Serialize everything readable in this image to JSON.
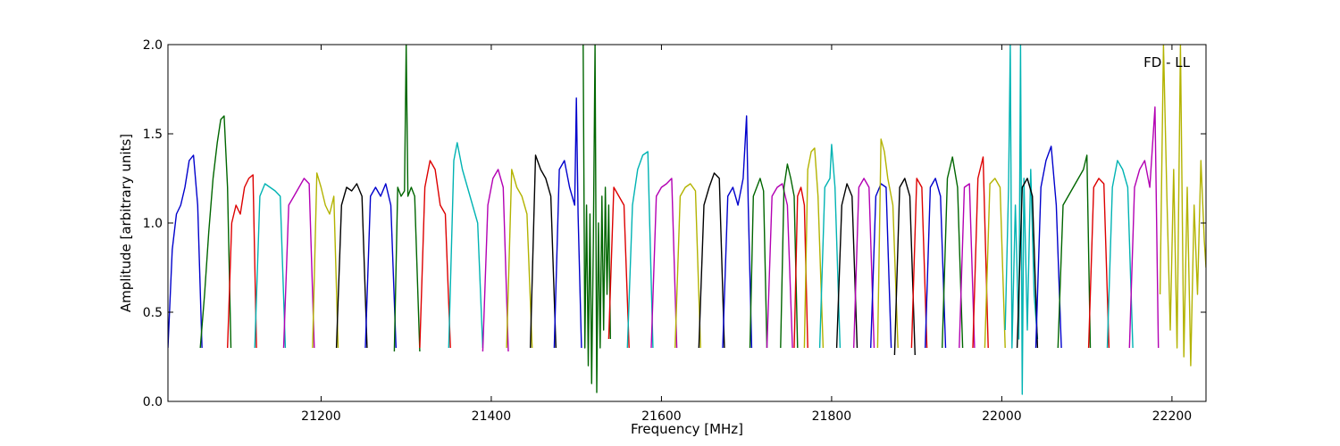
{
  "chart_data": {
    "type": "line",
    "title": "",
    "annotation": "FD - LL",
    "xlabel": "Frequency [MHz]",
    "ylabel": "Amplitude [arbitrary units]",
    "xlim": [
      21020,
      22240
    ],
    "ylim": [
      0.0,
      2.0
    ],
    "xticks": [
      21200,
      21400,
      21600,
      21800,
      22000,
      22200
    ],
    "yticks": [
      0.0,
      0.5,
      1.0,
      1.5,
      2.0
    ],
    "ytick_labels": [
      "0.0",
      "0.5",
      "1.0",
      "1.5",
      "2.0"
    ],
    "grid": false,
    "legend": "none",
    "colors": {
      "blue": "#0000cc",
      "green": "#006600",
      "red": "#dd0000",
      "cyan": "#00b3b3",
      "magenta": "#b300b3",
      "olive": "#b3b300",
      "black": "#000000"
    },
    "series": [
      {
        "color": "blue",
        "x": [
          21020,
          21025,
          21030,
          21035,
          21040,
          21045,
          21050,
          21055,
          21060
        ],
        "y": [
          0.3,
          0.85,
          1.05,
          1.1,
          1.2,
          1.35,
          1.38,
          1.1,
          0.3
        ]
      },
      {
        "color": "green",
        "x": [
          21058,
          21063,
          21068,
          21073,
          21078,
          21082,
          21086,
          21090,
          21094
        ],
        "y": [
          0.3,
          0.6,
          0.95,
          1.25,
          1.45,
          1.58,
          1.6,
          1.2,
          0.3
        ]
      },
      {
        "color": "red",
        "x": [
          21090,
          21095,
          21100,
          21105,
          21110,
          21115,
          21120,
          21124
        ],
        "y": [
          0.3,
          1.0,
          1.1,
          1.05,
          1.2,
          1.25,
          1.27,
          0.3
        ]
      },
      {
        "color": "cyan",
        "x": [
          21122,
          21128,
          21134,
          21140,
          21146,
          21152,
          21158
        ],
        "y": [
          0.3,
          1.15,
          1.22,
          1.2,
          1.18,
          1.15,
          0.3
        ]
      },
      {
        "color": "magenta",
        "x": [
          21156,
          21162,
          21168,
          21174,
          21180,
          21186,
          21192
        ],
        "y": [
          0.3,
          1.1,
          1.15,
          1.2,
          1.25,
          1.22,
          0.3
        ]
      },
      {
        "color": "olive",
        "x": [
          21190,
          21195,
          21200,
          21205,
          21210,
          21215,
          21220
        ],
        "y": [
          0.3,
          1.28,
          1.2,
          1.1,
          1.05,
          1.15,
          0.3
        ]
      },
      {
        "color": "black",
        "x": [
          21218,
          21224,
          21230,
          21236,
          21242,
          21248,
          21254
        ],
        "y": [
          0.3,
          1.1,
          1.2,
          1.18,
          1.22,
          1.15,
          0.3
        ]
      },
      {
        "color": "blue",
        "x": [
          21252,
          21258,
          21264,
          21270,
          21276,
          21282,
          21288
        ],
        "y": [
          0.3,
          1.15,
          1.2,
          1.15,
          1.22,
          1.1,
          0.3
        ]
      },
      {
        "color": "green",
        "x": [
          21286,
          21290,
          21294,
          21298,
          21300,
          21302,
          21306,
          21310,
          21316
        ],
        "y": [
          0.28,
          1.2,
          1.15,
          1.18,
          2.0,
          1.15,
          1.2,
          1.15,
          0.28
        ]
      },
      {
        "color": "red",
        "x": [
          21316,
          21322,
          21328,
          21334,
          21340,
          21346,
          21352
        ],
        "y": [
          0.3,
          1.2,
          1.35,
          1.3,
          1.1,
          1.05,
          0.3
        ]
      },
      {
        "color": "cyan",
        "x": [
          21350,
          21356,
          21360,
          21366,
          21372,
          21378,
          21384,
          21390
        ],
        "y": [
          0.3,
          1.35,
          1.45,
          1.3,
          1.2,
          1.1,
          1.0,
          0.3
        ]
      },
      {
        "color": "magenta",
        "x": [
          21390,
          21396,
          21402,
          21408,
          21414,
          21420
        ],
        "y": [
          0.28,
          1.1,
          1.25,
          1.3,
          1.2,
          0.28
        ]
      },
      {
        "color": "olive",
        "x": [
          21418,
          21424,
          21430,
          21436,
          21442,
          21448
        ],
        "y": [
          0.3,
          1.3,
          1.2,
          1.15,
          1.05,
          0.3
        ]
      },
      {
        "color": "black",
        "x": [
          21446,
          21452,
          21458,
          21464,
          21470,
          21476
        ],
        "y": [
          0.3,
          1.38,
          1.3,
          1.25,
          1.15,
          0.3
        ]
      },
      {
        "color": "blue",
        "x": [
          21474,
          21480,
          21486,
          21492,
          21498,
          21500,
          21502,
          21506
        ],
        "y": [
          0.3,
          1.3,
          1.35,
          1.2,
          1.1,
          1.7,
          1.05,
          0.3
        ]
      },
      {
        "color": "green",
        "x": [
          21508,
          21510,
          21512,
          21514,
          21516,
          21518,
          21520,
          21522,
          21524,
          21526,
          21528,
          21530,
          21532,
          21534,
          21536,
          21538,
          21540
        ],
        "y": [
          2.0,
          0.3,
          1.1,
          0.2,
          1.05,
          0.1,
          0.9,
          2.0,
          0.05,
          1.0,
          0.3,
          1.15,
          0.4,
          1.2,
          0.6,
          1.1,
          0.35
        ]
      },
      {
        "color": "red",
        "x": [
          21538,
          21544,
          21550,
          21556,
          21562
        ],
        "y": [
          0.35,
          1.2,
          1.15,
          1.1,
          0.3
        ]
      },
      {
        "color": "cyan",
        "x": [
          21560,
          21566,
          21572,
          21578,
          21584,
          21590
        ],
        "y": [
          0.3,
          1.1,
          1.3,
          1.38,
          1.4,
          0.3
        ]
      },
      {
        "color": "magenta",
        "x": [
          21588,
          21594,
          21600,
          21606,
          21612,
          21618
        ],
        "y": [
          0.3,
          1.15,
          1.2,
          1.22,
          1.25,
          0.3
        ]
      },
      {
        "color": "olive",
        "x": [
          21616,
          21622,
          21628,
          21634,
          21640,
          21646
        ],
        "y": [
          0.3,
          1.15,
          1.2,
          1.22,
          1.18,
          0.3
        ]
      },
      {
        "color": "black",
        "x": [
          21644,
          21650,
          21656,
          21662,
          21668,
          21674
        ],
        "y": [
          0.3,
          1.1,
          1.2,
          1.28,
          1.25,
          0.3
        ]
      },
      {
        "color": "blue",
        "x": [
          21672,
          21678,
          21684,
          21690,
          21696,
          21700,
          21702,
          21706
        ],
        "y": [
          0.3,
          1.15,
          1.2,
          1.1,
          1.25,
          1.6,
          1.1,
          0.3
        ]
      },
      {
        "color": "green",
        "x": [
          21704,
          21708,
          21712,
          21716,
          21720,
          21724
        ],
        "y": [
          0.3,
          1.15,
          1.2,
          1.25,
          1.18,
          0.3
        ]
      },
      {
        "color": "magenta",
        "x": [
          21724,
          21730,
          21736,
          21742,
          21748,
          21754
        ],
        "y": [
          0.3,
          1.15,
          1.2,
          1.22,
          1.1,
          0.3
        ]
      },
      {
        "color": "green",
        "x": [
          21740,
          21744,
          21748,
          21752,
          21756,
          21760
        ],
        "y": [
          0.3,
          1.2,
          1.33,
          1.25,
          1.15,
          0.3
        ]
      },
      {
        "color": "red",
        "x": [
          21756,
          21760,
          21764,
          21768,
          21772
        ],
        "y": [
          0.3,
          1.15,
          1.2,
          1.1,
          0.3
        ]
      },
      {
        "color": "olive",
        "x": [
          21768,
          21772,
          21776,
          21780,
          21784,
          21790
        ],
        "y": [
          0.3,
          1.3,
          1.4,
          1.42,
          1.15,
          0.3
        ]
      },
      {
        "color": "cyan",
        "x": [
          21786,
          21792,
          21798,
          21800,
          21804,
          21810
        ],
        "y": [
          0.3,
          1.2,
          1.25,
          1.44,
          1.2,
          0.3
        ]
      },
      {
        "color": "black",
        "x": [
          21806,
          21812,
          21818,
          21824,
          21830
        ],
        "y": [
          0.3,
          1.1,
          1.22,
          1.15,
          0.3
        ]
      },
      {
        "color": "magenta",
        "x": [
          21826,
          21832,
          21838,
          21844,
          21850
        ],
        "y": [
          0.3,
          1.2,
          1.25,
          1.2,
          0.3
        ]
      },
      {
        "color": "blue",
        "x": [
          21846,
          21852,
          21858,
          21864,
          21870
        ],
        "y": [
          0.3,
          1.15,
          1.22,
          1.2,
          0.3
        ]
      },
      {
        "color": "olive",
        "x": [
          21854,
          21858,
          21862,
          21866,
          21872,
          21878
        ],
        "y": [
          0.3,
          1.47,
          1.4,
          1.25,
          1.1,
          0.3
        ]
      },
      {
        "color": "black",
        "x": [
          21874,
          21880,
          21886,
          21892,
          21898
        ],
        "y": [
          0.26,
          1.2,
          1.25,
          1.15,
          0.26
        ]
      },
      {
        "color": "red",
        "x": [
          21894,
          21900,
          21906,
          21912
        ],
        "y": [
          0.3,
          1.25,
          1.2,
          0.3
        ]
      },
      {
        "color": "blue",
        "x": [
          21910,
          21916,
          21922,
          21928,
          21934
        ],
        "y": [
          0.3,
          1.2,
          1.25,
          1.15,
          0.3
        ]
      },
      {
        "color": "green",
        "x": [
          21930,
          21936,
          21942,
          21948,
          21954
        ],
        "y": [
          0.3,
          1.25,
          1.37,
          1.2,
          0.3
        ]
      },
      {
        "color": "magenta",
        "x": [
          21950,
          21956,
          21962,
          21968
        ],
        "y": [
          0.3,
          1.2,
          1.22,
          0.3
        ]
      },
      {
        "color": "red",
        "x": [
          21966,
          21972,
          21978,
          21984
        ],
        "y": [
          0.3,
          1.25,
          1.37,
          0.3
        ]
      },
      {
        "color": "olive",
        "x": [
          21980,
          21986,
          21992,
          21998,
          22004
        ],
        "y": [
          0.3,
          1.22,
          1.25,
          1.2,
          0.3
        ]
      },
      {
        "color": "cyan",
        "x": [
          22004,
          22008,
          22010,
          22012,
          22016,
          22020,
          22022,
          22024,
          22026,
          22030,
          22034,
          22038,
          22042
        ],
        "y": [
          0.4,
          1.2,
          2.0,
          0.3,
          1.1,
          0.35,
          2.0,
          0.04,
          1.25,
          0.4,
          1.3,
          0.6,
          0.35
        ]
      },
      {
        "color": "black",
        "x": [
          22018,
          22024,
          22030,
          22036,
          22042
        ],
        "y": [
          0.3,
          1.2,
          1.25,
          1.15,
          0.3
        ]
      },
      {
        "color": "blue",
        "x": [
          22040,
          22046,
          22052,
          22058,
          22064,
          22070
        ],
        "y": [
          0.3,
          1.2,
          1.35,
          1.43,
          1.1,
          0.3
        ]
      },
      {
        "color": "green",
        "x": [
          22066,
          22072,
          22078,
          22084,
          22090,
          22096,
          22100,
          22104
        ],
        "y": [
          0.3,
          1.1,
          1.15,
          1.2,
          1.25,
          1.3,
          1.38,
          0.3
        ]
      },
      {
        "color": "red",
        "x": [
          22102,
          22108,
          22114,
          22120,
          22126
        ],
        "y": [
          0.3,
          1.2,
          1.25,
          1.22,
          0.3
        ]
      },
      {
        "color": "cyan",
        "x": [
          22124,
          22130,
          22136,
          22142,
          22148,
          22154
        ],
        "y": [
          0.3,
          1.2,
          1.35,
          1.3,
          1.2,
          0.3
        ]
      },
      {
        "color": "magenta",
        "x": [
          22150,
          22156,
          22162,
          22168,
          22174,
          22180,
          22184
        ],
        "y": [
          0.3,
          1.2,
          1.3,
          1.35,
          1.2,
          1.65,
          0.3
        ]
      },
      {
        "color": "olive",
        "x": [
          22186,
          22190,
          22194,
          22198,
          22202,
          22206,
          22210,
          22214,
          22218,
          22222,
          22226,
          22230,
          22234,
          22238,
          22240
        ],
        "y": [
          0.6,
          2.0,
          1.15,
          0.4,
          1.3,
          0.3,
          2.0,
          0.25,
          1.2,
          0.2,
          1.1,
          0.6,
          1.35,
          0.9,
          0.75
        ]
      }
    ]
  }
}
